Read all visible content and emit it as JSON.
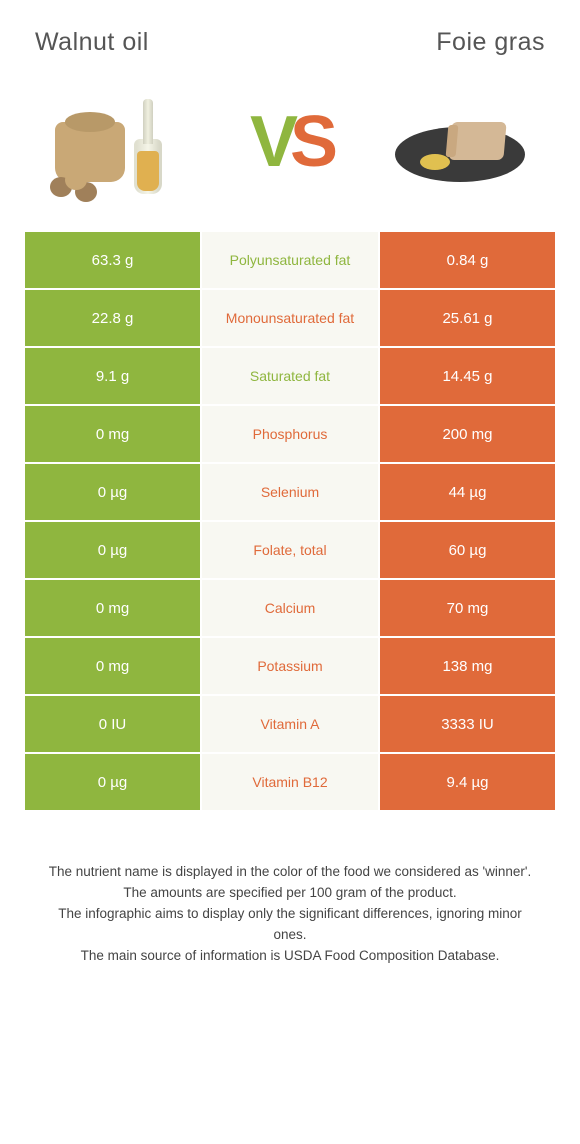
{
  "colors": {
    "left": "#8fb63f",
    "right": "#e06a3a",
    "mid_bg": "#f8f8f2",
    "text": "#444444",
    "header_text": "#555555"
  },
  "header": {
    "left_title": "Walnut oil",
    "right_title": "Foie gras",
    "vs_v": "V",
    "vs_s": "S"
  },
  "rows": [
    {
      "left": "63.3 g",
      "label": "Polyunsaturated fat",
      "right": "0.84 g",
      "winner": "left"
    },
    {
      "left": "22.8 g",
      "label": "Monounsaturated fat",
      "right": "25.61 g",
      "winner": "right"
    },
    {
      "left": "9.1 g",
      "label": "Saturated fat",
      "right": "14.45 g",
      "winner": "left"
    },
    {
      "left": "0 mg",
      "label": "Phosphorus",
      "right": "200 mg",
      "winner": "right"
    },
    {
      "left": "0 µg",
      "label": "Selenium",
      "right": "44 µg",
      "winner": "right"
    },
    {
      "left": "0 µg",
      "label": "Folate, total",
      "right": "60 µg",
      "winner": "right"
    },
    {
      "left": "0 mg",
      "label": "Calcium",
      "right": "70 mg",
      "winner": "right"
    },
    {
      "left": "0 mg",
      "label": "Potassium",
      "right": "138 mg",
      "winner": "right"
    },
    {
      "left": "0 IU",
      "label": "Vitamin A",
      "right": "3333 IU",
      "winner": "right"
    },
    {
      "left": "0 µg",
      "label": "Vitamin B12",
      "right": "9.4 µg",
      "winner": "right"
    }
  ],
  "footer": {
    "line1": "The nutrient name is displayed in the color of the food we considered as 'winner'.",
    "line2": "The amounts are specified per 100 gram of the product.",
    "line3": "The infographic aims to display only the significant differences, ignoring minor ones.",
    "line4": "The main source of information is USDA Food Composition Database."
  }
}
